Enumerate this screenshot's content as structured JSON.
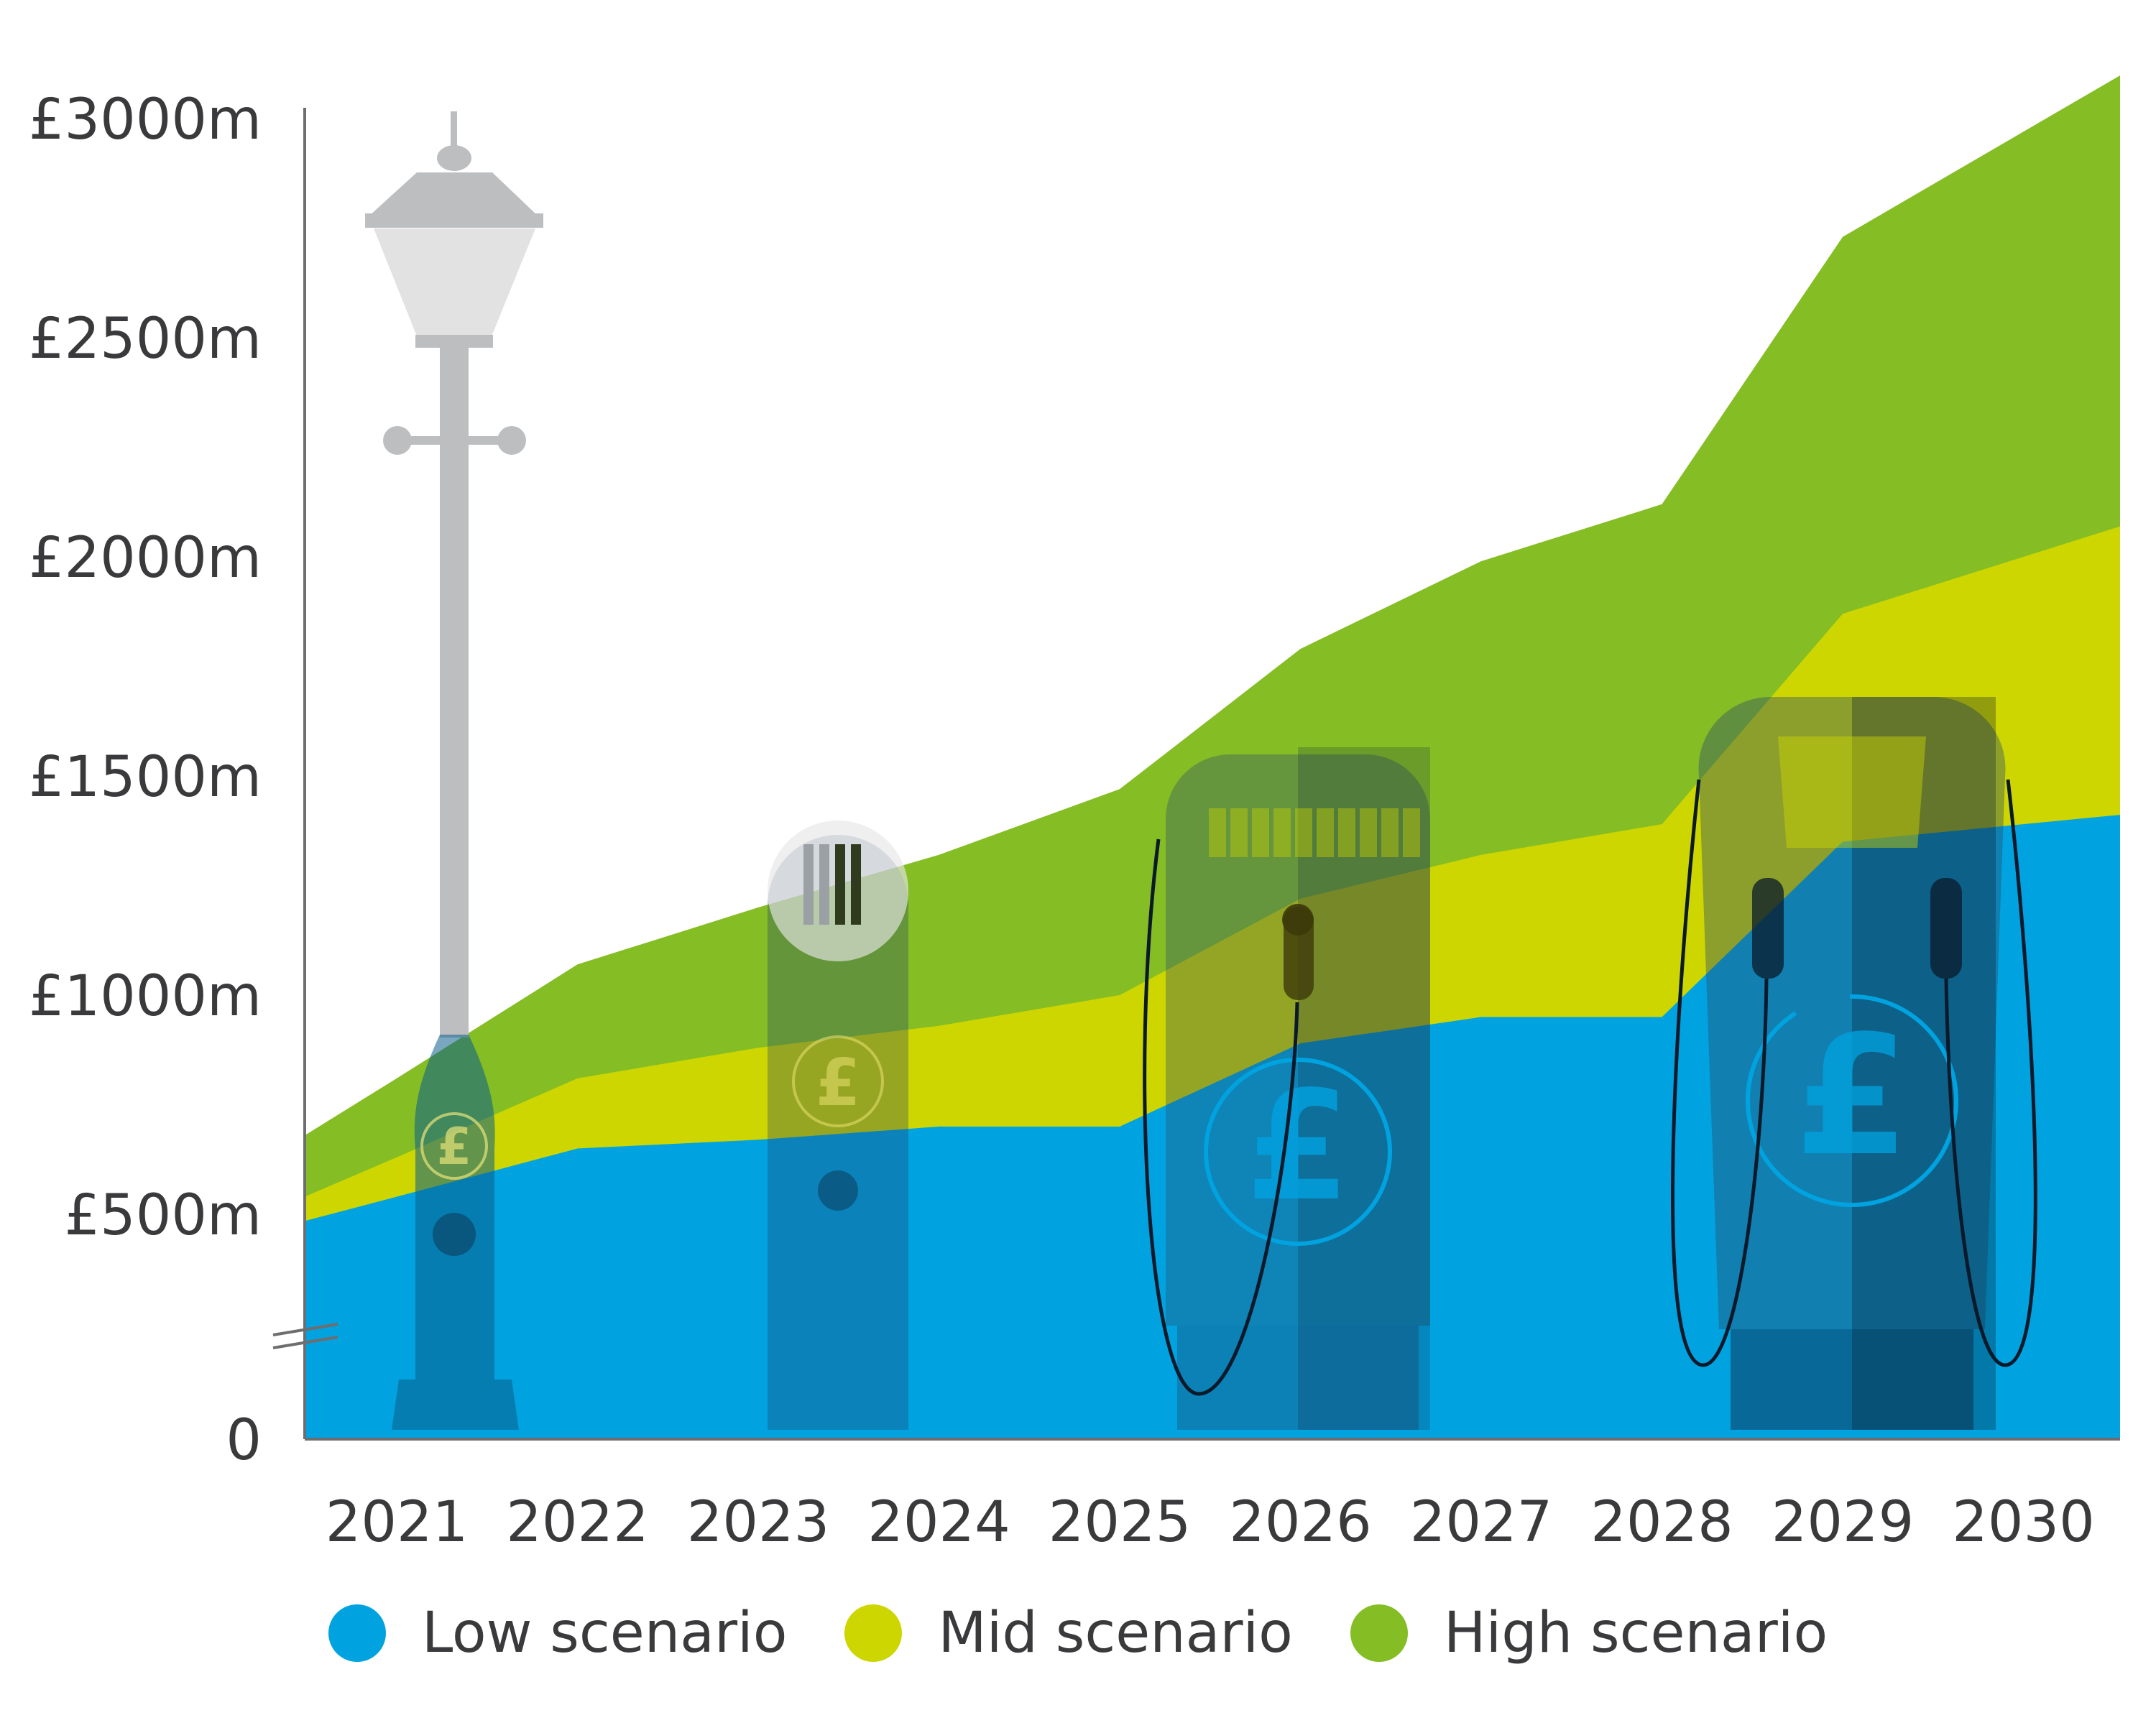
{
  "colors": {
    "low": "#00a3e0",
    "mid": "#cdd600",
    "high": "#84bd24",
    "axis": "#6e6e70",
    "text": "#3a3a3c"
  },
  "chart_data": {
    "type": "area",
    "stacked_display": "overlapping",
    "x": [
      "2021",
      "2022",
      "2023",
      "2024",
      "2025",
      "2026",
      "2027",
      "2028",
      "2029",
      "2030"
    ],
    "series": [
      {
        "name": "High scenario",
        "color_key": "high",
        "values": [
          810,
          1070,
          1200,
          1320,
          1470,
          1790,
          1990,
          2120,
          2730,
          2970
        ]
      },
      {
        "name": "Mid scenario",
        "color_key": "mid",
        "values": [
          630,
          810,
          880,
          930,
          1000,
          1220,
          1320,
          1390,
          1870,
          2000
        ]
      },
      {
        "name": "Low scenario",
        "color_key": "low",
        "values": [
          540,
          650,
          670,
          700,
          700,
          890,
          950,
          950,
          1350,
          1390
        ]
      }
    ],
    "y_ticks": [
      {
        "value": 0,
        "label": "0"
      },
      {
        "value": 500,
        "label": "£500m"
      },
      {
        "value": 1000,
        "label": "£1000m"
      },
      {
        "value": 1500,
        "label": "£1500m"
      },
      {
        "value": 2000,
        "label": "£2000m"
      },
      {
        "value": 2500,
        "label": "£2500m"
      },
      {
        "value": 3000,
        "label": "£3000m"
      }
    ],
    "ylim": [
      0,
      3000
    ],
    "axis_break": "between 0 and £500m",
    "grid": false,
    "legend_position": "bottom-center",
    "title": "",
    "xlabel": "",
    "ylabel": ""
  },
  "legend": {
    "items": [
      {
        "label": "Low scenario",
        "color_key": "low"
      },
      {
        "label": "Mid scenario",
        "color_key": "mid"
      },
      {
        "label": "High scenario",
        "color_key": "high"
      }
    ]
  },
  "decorations": [
    "street-lamp-icon",
    "charging-post-icon",
    "charging-station-icon",
    "rapid-charger-icon",
    "pound-coin-icon"
  ]
}
